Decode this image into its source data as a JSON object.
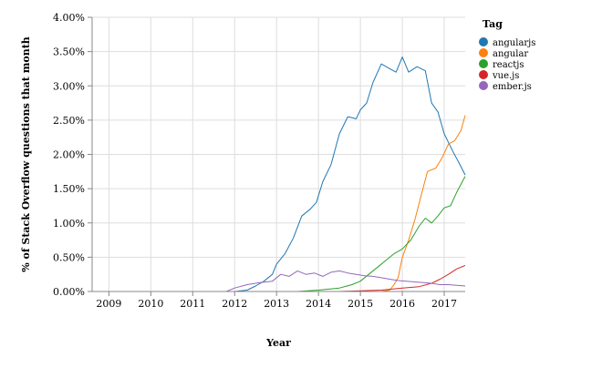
{
  "chart_data": {
    "type": "line",
    "title": "",
    "xlabel": "Year",
    "ylabel": "% of Stack Overflow questions that month",
    "x_ticks": [
      "2009",
      "2010",
      "2011",
      "2012",
      "2013",
      "2014",
      "2015",
      "2016",
      "2017"
    ],
    "xlim": [
      2008.6,
      2017.5
    ],
    "ylim": [
      0,
      4.0
    ],
    "y_ticks": [
      0,
      0.5,
      1.0,
      1.5,
      2.0,
      2.5,
      3.0,
      3.5,
      4.0
    ],
    "y_tick_labels": [
      "0.00%",
      "0.50%",
      "1.00%",
      "1.50%",
      "2.00%",
      "2.50%",
      "3.00%",
      "3.50%",
      "4.00%"
    ],
    "grid": true,
    "legend": {
      "title": "Tag",
      "placement": "right"
    },
    "series": [
      {
        "name": "angularjs",
        "color": "#1f77b4",
        "points": [
          [
            2008.6,
            0.0
          ],
          [
            2012.0,
            0.0
          ],
          [
            2012.3,
            0.02
          ],
          [
            2012.5,
            0.08
          ],
          [
            2012.7,
            0.15
          ],
          [
            2012.9,
            0.25
          ],
          [
            2013.0,
            0.4
          ],
          [
            2013.2,
            0.55
          ],
          [
            2013.4,
            0.78
          ],
          [
            2013.6,
            1.1
          ],
          [
            2013.8,
            1.2
          ],
          [
            2013.95,
            1.3
          ],
          [
            2014.1,
            1.6
          ],
          [
            2014.3,
            1.85
          ],
          [
            2014.5,
            2.3
          ],
          [
            2014.7,
            2.55
          ],
          [
            2014.9,
            2.52
          ],
          [
            2015.0,
            2.65
          ],
          [
            2015.15,
            2.75
          ],
          [
            2015.3,
            3.05
          ],
          [
            2015.5,
            3.32
          ],
          [
            2015.7,
            3.25
          ],
          [
            2015.85,
            3.2
          ],
          [
            2016.0,
            3.42
          ],
          [
            2016.15,
            3.2
          ],
          [
            2016.35,
            3.28
          ],
          [
            2016.55,
            3.22
          ],
          [
            2016.7,
            2.75
          ],
          [
            2016.85,
            2.62
          ],
          [
            2017.0,
            2.3
          ],
          [
            2017.2,
            2.05
          ],
          [
            2017.35,
            1.88
          ],
          [
            2017.5,
            1.7
          ]
        ]
      },
      {
        "name": "angular",
        "color": "#ff7f0e",
        "points": [
          [
            2008.6,
            0.0
          ],
          [
            2015.5,
            0.0
          ],
          [
            2015.7,
            0.02
          ],
          [
            2015.8,
            0.1
          ],
          [
            2015.9,
            0.2
          ],
          [
            2016.0,
            0.5
          ],
          [
            2016.15,
            0.75
          ],
          [
            2016.3,
            1.05
          ],
          [
            2016.45,
            1.4
          ],
          [
            2016.6,
            1.75
          ],
          [
            2016.8,
            1.8
          ],
          [
            2016.95,
            1.95
          ],
          [
            2017.1,
            2.15
          ],
          [
            2017.25,
            2.2
          ],
          [
            2017.4,
            2.35
          ],
          [
            2017.5,
            2.57
          ]
        ]
      },
      {
        "name": "reactjs",
        "color": "#2ca02c",
        "points": [
          [
            2008.6,
            0.0
          ],
          [
            2013.5,
            0.0
          ],
          [
            2014.0,
            0.02
          ],
          [
            2014.5,
            0.05
          ],
          [
            2014.8,
            0.1
          ],
          [
            2015.0,
            0.15
          ],
          [
            2015.2,
            0.25
          ],
          [
            2015.4,
            0.35
          ],
          [
            2015.6,
            0.45
          ],
          [
            2015.8,
            0.55
          ],
          [
            2016.0,
            0.62
          ],
          [
            2016.2,
            0.75
          ],
          [
            2016.4,
            0.95
          ],
          [
            2016.55,
            1.07
          ],
          [
            2016.7,
            1.0
          ],
          [
            2016.85,
            1.1
          ],
          [
            2017.0,
            1.22
          ],
          [
            2017.15,
            1.25
          ],
          [
            2017.3,
            1.45
          ],
          [
            2017.5,
            1.68
          ]
        ]
      },
      {
        "name": "vue.js",
        "color": "#d62728",
        "points": [
          [
            2008.6,
            0.0
          ],
          [
            2014.5,
            0.0
          ],
          [
            2015.0,
            0.01
          ],
          [
            2015.5,
            0.02
          ],
          [
            2016.0,
            0.05
          ],
          [
            2016.4,
            0.07
          ],
          [
            2016.7,
            0.12
          ],
          [
            2016.9,
            0.18
          ],
          [
            2017.1,
            0.25
          ],
          [
            2017.3,
            0.33
          ],
          [
            2017.5,
            0.38
          ]
        ]
      },
      {
        "name": "ember.js",
        "color": "#9467bd",
        "points": [
          [
            2008.6,
            0.0
          ],
          [
            2011.8,
            0.0
          ],
          [
            2012.0,
            0.05
          ],
          [
            2012.3,
            0.1
          ],
          [
            2012.6,
            0.13
          ],
          [
            2012.9,
            0.15
          ],
          [
            2013.1,
            0.25
          ],
          [
            2013.3,
            0.22
          ],
          [
            2013.5,
            0.3
          ],
          [
            2013.7,
            0.25
          ],
          [
            2013.9,
            0.27
          ],
          [
            2014.1,
            0.22
          ],
          [
            2014.3,
            0.28
          ],
          [
            2014.5,
            0.3
          ],
          [
            2014.7,
            0.27
          ],
          [
            2014.9,
            0.25
          ],
          [
            2015.1,
            0.23
          ],
          [
            2015.3,
            0.22
          ],
          [
            2015.5,
            0.2
          ],
          [
            2015.7,
            0.18
          ],
          [
            2015.9,
            0.16
          ],
          [
            2016.1,
            0.15
          ],
          [
            2016.3,
            0.14
          ],
          [
            2016.5,
            0.13
          ],
          [
            2016.7,
            0.12
          ],
          [
            2016.9,
            0.1
          ],
          [
            2017.1,
            0.1
          ],
          [
            2017.3,
            0.09
          ],
          [
            2017.5,
            0.08
          ]
        ]
      }
    ]
  }
}
